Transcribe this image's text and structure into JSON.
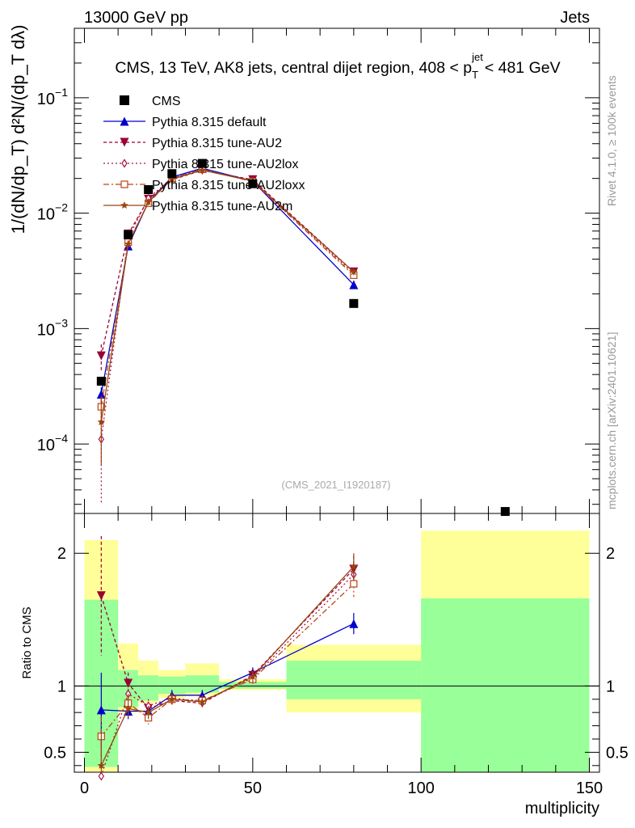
{
  "header": {
    "left": "13000 GeV pp",
    "right": "Jets",
    "title": "CMS, 13 TeV, AK8 jets, central dijet region, 408 < p_T^{jet} < 481 GeV",
    "watermark": "(CMS_2021_I1920187)",
    "side_top": "Rivet 4.1.0, ≥ 100k events",
    "side_bottom": "mcplots.cern.ch [arXiv:2401.10621]"
  },
  "chart_data": [
    {
      "type": "scatter",
      "panel": "main",
      "ylabel": "1/(dN/dp_T) d^2N/(dp_T dλ)",
      "yscale": "log",
      "ylim": [
        2.5e-05,
        0.4
      ],
      "xlim": [
        -3,
        153
      ],
      "ytick_labels": [
        "10^-4",
        "10^-3",
        "10^-2",
        "10^-1"
      ],
      "legend": [
        "CMS",
        "Pythia 8.315 default",
        "Pythia 8.315 tune-AU2",
        "Pythia 8.315 tune-AU2lox",
        "Pythia 8.315 tune-AU2loxx",
        "Pythia 8.315 tune-AU2m"
      ],
      "legend_position": "top-left",
      "cms": {
        "x": [
          5,
          13,
          19,
          26,
          35,
          50,
          80,
          125
        ],
        "y": [
          0.00035,
          0.0065,
          0.016,
          0.022,
          0.027,
          0.018,
          0.00165,
          2.6e-05
        ]
      },
      "series": [
        {
          "name": "Pythia 8.315 default",
          "color": "#0000cc",
          "marker": "triangle-up",
          "dash": "",
          "x": [
            5,
            13,
            19,
            26,
            35,
            50,
            80
          ],
          "y": [
            0.00027,
            0.0052,
            0.0125,
            0.0205,
            0.0245,
            0.019,
            0.0024
          ],
          "err": [
            4e-05,
            0.0004,
            0.0008,
            0.001,
            0.001,
            0.0008,
            0.0002
          ]
        },
        {
          "name": "Pythia 8.315 tune-AU2",
          "color": "#990033",
          "marker": "triangle-down",
          "dash": "4,3",
          "x": [
            5,
            13,
            19,
            26,
            35,
            50,
            80
          ],
          "y": [
            0.00058,
            0.0066,
            0.0132,
            0.0195,
            0.0235,
            0.0195,
            0.0031
          ],
          "err": [
            0.00015,
            0.0005,
            0.0009,
            0.001,
            0.001,
            0.0008,
            0.0002
          ]
        },
        {
          "name": "Pythia 8.315 tune-AU2lox",
          "color": "#aa1144",
          "marker": "diamond",
          "dash": "2,3",
          "x": [
            5,
            13,
            19,
            26,
            35,
            50,
            80
          ],
          "y": [
            0.00011,
            0.0061,
            0.0135,
            0.02,
            0.0238,
            0.019,
            0.003
          ],
          "err": [
            8e-05,
            0.0005,
            0.0009,
            0.001,
            0.001,
            0.0008,
            0.0002
          ]
        },
        {
          "name": "Pythia 8.315 tune-AU2loxx",
          "color": "#bb4411",
          "marker": "square-open",
          "dash": "7,3,2,3",
          "x": [
            5,
            13,
            19,
            26,
            35,
            50,
            80
          ],
          "y": [
            0.00021,
            0.0056,
            0.0122,
            0.02,
            0.024,
            0.0188,
            0.0029
          ],
          "err": [
            5e-05,
            0.0004,
            0.0008,
            0.001,
            0.001,
            0.0008,
            0.0002
          ]
        },
        {
          "name": "Pythia 8.315 tune-AU2m",
          "color": "#994411",
          "marker": "star",
          "dash": "",
          "x": [
            5,
            13,
            19,
            26,
            35,
            50,
            80
          ],
          "y": [
            0.000155,
            0.0054,
            0.0125,
            0.0197,
            0.0236,
            0.019,
            0.0031
          ],
          "err": [
            9e-05,
            0.0004,
            0.0008,
            0.001,
            0.001,
            0.0008,
            0.0002
          ]
        }
      ]
    },
    {
      "type": "scatter",
      "panel": "ratio",
      "ylabel": "Ratio to CMS",
      "xlabel": "multiplicity",
      "ylim": [
        0.35,
        2.3
      ],
      "xlim": [
        -3,
        153
      ],
      "xticks": [
        0,
        50,
        100,
        150
      ],
      "yticks": [
        0.5,
        1,
        2
      ],
      "bands": [
        {
          "x0": 0,
          "x1": 10,
          "g_lo": 0.39,
          "g_hi": 1.65,
          "y_lo": 0.33,
          "y_hi": 2.1
        },
        {
          "x0": 10,
          "x1": 16,
          "g_lo": 0.84,
          "g_hi": 1.12,
          "y_lo": 0.8,
          "y_hi": 1.32
        },
        {
          "x0": 16,
          "x1": 22,
          "g_lo": 0.89,
          "g_hi": 1.08,
          "y_lo": 0.87,
          "y_hi": 1.19
        },
        {
          "x0": 22,
          "x1": 30,
          "g_lo": 0.94,
          "g_hi": 1.07,
          "y_lo": 0.91,
          "y_hi": 1.12
        },
        {
          "x0": 30,
          "x1": 40,
          "g_lo": 0.95,
          "g_hi": 1.08,
          "y_lo": 0.93,
          "y_hi": 1.17
        },
        {
          "x0": 40,
          "x1": 60,
          "g_lo": 0.98,
          "g_hi": 1.03,
          "y_lo": 0.97,
          "y_hi": 1.05
        },
        {
          "x0": 60,
          "x1": 100,
          "g_lo": 0.9,
          "g_hi": 1.19,
          "y_lo": 0.8,
          "y_hi": 1.31
        },
        {
          "x0": 100,
          "x1": 150,
          "g_lo": 0.33,
          "g_hi": 1.66,
          "y_lo": 0.33,
          "y_hi": 2.17
        }
      ],
      "series": [
        {
          "name": "Pythia 8.315 default",
          "color": "#0000cc",
          "marker": "triangle-up",
          "dash": "",
          "x": [
            5,
            13,
            19,
            26,
            35,
            50,
            80
          ],
          "y": [
            0.82,
            0.81,
            0.81,
            0.93,
            0.93,
            1.1,
            1.47
          ],
          "err": [
            0.28,
            0.06,
            0.05,
            0.04,
            0.04,
            0.04,
            0.08
          ]
        },
        {
          "name": "Pythia 8.315 tune-AU2",
          "color": "#990033",
          "marker": "triangle-down",
          "dash": "4,3",
          "x": [
            5,
            13,
            19,
            26,
            35,
            50,
            80
          ],
          "y": [
            1.68,
            1.02,
            0.83,
            0.89,
            0.87,
            1.08,
            1.88
          ],
          "err": [
            0.45,
            0.08,
            0.05,
            0.04,
            0.04,
            0.04,
            0.1
          ]
        },
        {
          "name": "Pythia 8.315 tune-AU2lox",
          "color": "#aa1144",
          "marker": "diamond",
          "dash": "2,3",
          "x": [
            5,
            13,
            19,
            26,
            35,
            50,
            80
          ],
          "y": [
            0.32,
            0.94,
            0.85,
            0.91,
            0.88,
            1.06,
            1.84
          ],
          "err": [
            0.22,
            0.07,
            0.05,
            0.04,
            0.04,
            0.04,
            0.1
          ]
        },
        {
          "name": "Pythia 8.315 tune-AU2loxx",
          "color": "#bb4411",
          "marker": "square-open",
          "dash": "7,3,2,3",
          "x": [
            5,
            13,
            19,
            26,
            35,
            50,
            80
          ],
          "y": [
            0.62,
            0.87,
            0.76,
            0.9,
            0.89,
            1.05,
            1.77
          ],
          "err": [
            0.15,
            0.07,
            0.05,
            0.04,
            0.04,
            0.04,
            0.1
          ]
        },
        {
          "name": "Pythia 8.315 tune-AU2m",
          "color": "#994411",
          "marker": "star",
          "dash": "",
          "x": [
            5,
            13,
            19,
            26,
            35,
            50,
            80
          ],
          "y": [
            0.4,
            0.83,
            0.8,
            0.9,
            0.88,
            1.07,
            1.9
          ],
          "err": [
            0.25,
            0.07,
            0.05,
            0.04,
            0.04,
            0.04,
            0.1
          ]
        }
      ]
    }
  ]
}
